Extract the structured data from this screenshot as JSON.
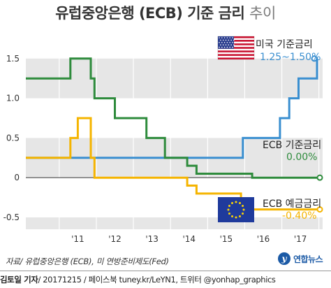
{
  "header": {
    "title_bold": "유럽중앙은행 (ECB) 기준 금리",
    "title_light": "추이"
  },
  "chart_data": {
    "type": "line",
    "title": "유럽중앙은행 (ECB) 기준 금리 추이",
    "x_ticks": [
      "'11",
      "'12",
      "'13",
      "'14",
      "'15",
      "'16",
      "'17"
    ],
    "x_tick_values": [
      2011,
      2012,
      2013,
      2014,
      2015,
      2016,
      2017
    ],
    "x_range": [
      2010.1,
      2018.1
    ],
    "y_ticks": [
      "1.5",
      "1.0",
      "0.5",
      "0",
      "-0.5"
    ],
    "y_tick_values": [
      1.5,
      1.0,
      0.5,
      0,
      -0.5
    ],
    "ylim": [
      -0.65,
      1.85
    ],
    "grid": true,
    "series": [
      {
        "name": "미국 기준금리",
        "color": "#3a8fd0",
        "points": [
          [
            2010.1,
            0.25
          ],
          [
            2015.95,
            0.25
          ],
          [
            2015.95,
            0.5
          ],
          [
            2016.95,
            0.5
          ],
          [
            2016.95,
            0.75
          ],
          [
            2017.2,
            0.75
          ],
          [
            2017.2,
            1.0
          ],
          [
            2017.45,
            1.0
          ],
          [
            2017.45,
            1.25
          ],
          [
            2017.95,
            1.25
          ],
          [
            2017.95,
            1.5
          ]
        ]
      },
      {
        "name": "ECB 기준금리",
        "color": "#2e8b3c",
        "points": [
          [
            2010.1,
            1.25
          ],
          [
            2011.3,
            1.25
          ],
          [
            2011.3,
            1.5
          ],
          [
            2011.85,
            1.5
          ],
          [
            2011.85,
            1.25
          ],
          [
            2011.95,
            1.25
          ],
          [
            2011.95,
            1.0
          ],
          [
            2012.5,
            1.0
          ],
          [
            2012.5,
            0.75
          ],
          [
            2013.35,
            0.75
          ],
          [
            2013.35,
            0.5
          ],
          [
            2013.85,
            0.5
          ],
          [
            2013.85,
            0.25
          ],
          [
            2014.45,
            0.25
          ],
          [
            2014.45,
            0.15
          ],
          [
            2014.7,
            0.15
          ],
          [
            2014.7,
            0.05
          ],
          [
            2016.2,
            0.05
          ],
          [
            2016.2,
            0.0
          ],
          [
            2018.1,
            0.0
          ]
        ]
      },
      {
        "name": "ECB 예금금리",
        "color": "#f5b400",
        "points": [
          [
            2010.1,
            0.25
          ],
          [
            2011.3,
            0.25
          ],
          [
            2011.3,
            0.5
          ],
          [
            2011.5,
            0.5
          ],
          [
            2011.5,
            0.75
          ],
          [
            2011.85,
            0.75
          ],
          [
            2011.85,
            0.25
          ],
          [
            2011.95,
            0.25
          ],
          [
            2011.95,
            0.0
          ],
          [
            2014.45,
            0.0
          ],
          [
            2014.45,
            -0.1
          ],
          [
            2014.7,
            -0.1
          ],
          [
            2014.7,
            -0.2
          ],
          [
            2015.9,
            -0.2
          ],
          [
            2015.9,
            -0.3
          ],
          [
            2016.2,
            -0.3
          ],
          [
            2016.2,
            -0.4
          ],
          [
            2018.1,
            -0.4
          ]
        ]
      }
    ],
    "legend": [
      {
        "label": "미국 기준금리",
        "value": "1.25~1.50%",
        "color": "#3a8fd0"
      },
      {
        "label": "ECB 기준금리",
        "value": "0.00%",
        "color": "#2e8b3c"
      },
      {
        "label": "ECB 예금금리",
        "value": "-0.40%",
        "color": "#f5b400"
      }
    ]
  },
  "footer": {
    "source": "자료/ 유럽중앙은행 (ECB), 미 연방준비제도(Fed)",
    "logo": "연합뉴스",
    "reporter": "김토일 기자",
    "credit_rest": "/ 20171215 / 페이스북 tuney.kr/LeYN1, 트위터 @yonhap_graphics"
  }
}
